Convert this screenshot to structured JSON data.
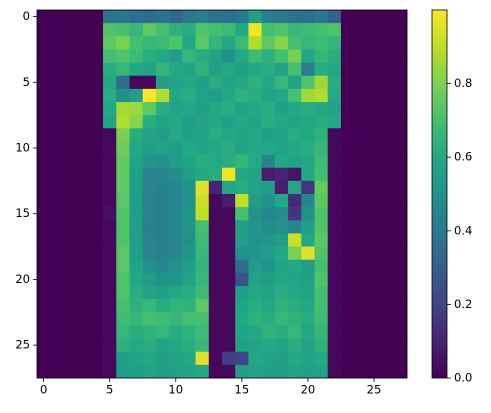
{
  "chart_data": {
    "type": "heatmap",
    "xlim": [
      -0.5,
      27.5
    ],
    "ylim": [
      27.5,
      -0.5
    ],
    "xticks": [
      0,
      5,
      10,
      15,
      20,
      25
    ],
    "yticks": [
      0,
      5,
      10,
      15,
      20,
      25
    ],
    "clim": [
      0,
      1
    ],
    "cticks": [
      {
        "value": 0,
        "label": "0.0"
      },
      {
        "value": 0.2,
        "label": "0.2"
      },
      {
        "value": 0.4,
        "label": "0.4"
      },
      {
        "value": 0.6,
        "label": "0.6"
      },
      {
        "value": 0.8,
        "label": "0.8"
      }
    ],
    "colormap": "viridis",
    "z": [
      [
        0,
        0,
        0,
        0,
        0,
        0.38,
        0.4,
        0.36,
        0.35,
        0.38,
        0.33,
        0.4,
        0.42,
        0.38,
        0.36,
        0.4,
        0.55,
        0.42,
        0.4,
        0.38,
        0.36,
        0.4,
        0.3,
        0,
        0,
        0,
        0,
        0
      ],
      [
        0,
        0,
        0,
        0,
        0,
        0.72,
        0.7,
        0.66,
        0.75,
        0.7,
        0.64,
        0.62,
        0.72,
        0.7,
        0.68,
        0.6,
        0.97,
        0.7,
        0.72,
        0.66,
        0.68,
        0.7,
        0.72,
        0,
        0,
        0,
        0,
        0
      ],
      [
        0,
        0,
        0,
        0,
        0,
        0.75,
        0.8,
        0.7,
        0.66,
        0.68,
        0.72,
        0.6,
        0.74,
        0.65,
        0.6,
        0.68,
        0.88,
        0.75,
        0.82,
        0.7,
        0.66,
        0.68,
        0.65,
        0,
        0,
        0,
        0,
        0
      ],
      [
        0,
        0,
        0,
        0,
        0,
        0.7,
        0.72,
        0.68,
        0.62,
        0.6,
        0.55,
        0.66,
        0.62,
        0.58,
        0.5,
        0.6,
        0.68,
        0.64,
        0.7,
        0.8,
        0.6,
        0.66,
        0.62,
        0,
        0,
        0,
        0,
        0
      ],
      [
        0,
        0,
        0,
        0,
        0,
        0.62,
        0.66,
        0.6,
        0.58,
        0.65,
        0.6,
        0.58,
        0.64,
        0.56,
        0.6,
        0.55,
        0.6,
        0.62,
        0.58,
        0.7,
        0.42,
        0.62,
        0.6,
        0,
        0,
        0,
        0,
        0
      ],
      [
        0,
        0,
        0,
        0,
        0,
        0.6,
        0.35,
        0.02,
        0.02,
        0.55,
        0.58,
        0.6,
        0.56,
        0.62,
        0.58,
        0.6,
        0.64,
        0.6,
        0.66,
        0.58,
        0.72,
        0.85,
        0.62,
        0,
        0,
        0,
        0,
        0
      ],
      [
        0,
        0,
        0,
        0,
        0,
        0.62,
        0.5,
        0.55,
        1.0,
        0.88,
        0.6,
        0.62,
        0.58,
        0.55,
        0.6,
        0.64,
        0.62,
        0.58,
        0.6,
        0.7,
        0.86,
        0.88,
        0.6,
        0,
        0,
        0,
        0,
        0
      ],
      [
        0,
        0,
        0,
        0,
        0,
        0.6,
        0.86,
        0.85,
        0.75,
        0.62,
        0.58,
        0.6,
        0.56,
        0.6,
        0.62,
        0.58,
        0.6,
        0.62,
        0.56,
        0.6,
        0.62,
        0.6,
        0.58,
        0,
        0,
        0,
        0,
        0
      ],
      [
        0,
        0,
        0,
        0,
        0,
        0.58,
        0.88,
        0.82,
        0.62,
        0.58,
        0.6,
        0.55,
        0.58,
        0.6,
        0.56,
        0.6,
        0.58,
        0.62,
        0.6,
        0.58,
        0.6,
        0.62,
        0.6,
        0,
        0,
        0,
        0,
        0
      ],
      [
        0,
        0,
        0,
        0,
        0,
        0.02,
        0.8,
        0.62,
        0.58,
        0.55,
        0.6,
        0.56,
        0.58,
        0.62,
        0.6,
        0.58,
        0.6,
        0.56,
        0.58,
        0.62,
        0.6,
        0.64,
        0.02,
        0,
        0,
        0,
        0,
        0
      ],
      [
        0,
        0,
        0,
        0,
        0,
        0.02,
        0.78,
        0.6,
        0.56,
        0.58,
        0.55,
        0.6,
        0.58,
        0.6,
        0.62,
        0.58,
        0.6,
        0.6,
        0.58,
        0.6,
        0.62,
        0.66,
        0.02,
        0,
        0,
        0,
        0,
        0
      ],
      [
        0,
        0,
        0,
        0,
        0,
        0.02,
        0.76,
        0.58,
        0.52,
        0.5,
        0.55,
        0.58,
        0.62,
        0.6,
        0.62,
        0.66,
        0.6,
        0.45,
        0.6,
        0.58,
        0.6,
        0.68,
        0.02,
        0,
        0,
        0,
        0,
        0
      ],
      [
        0,
        0,
        0,
        0,
        0,
        0.02,
        0.75,
        0.56,
        0.46,
        0.45,
        0.48,
        0.55,
        0.6,
        0.62,
        0.98,
        0.6,
        0.58,
        0.08,
        0.1,
        0.05,
        0.6,
        0.7,
        0.02,
        0,
        0,
        0,
        0,
        0
      ],
      [
        0,
        0,
        0,
        0,
        0,
        0.02,
        0.75,
        0.55,
        0.45,
        0.44,
        0.46,
        0.5,
        0.95,
        0.1,
        0.6,
        0.62,
        0.58,
        0.55,
        0.08,
        0.6,
        0.15,
        0.76,
        0.02,
        0,
        0,
        0,
        0,
        0
      ],
      [
        0,
        0,
        0,
        0,
        0,
        0.02,
        0.74,
        0.55,
        0.44,
        0.42,
        0.46,
        0.5,
        0.92,
        0.02,
        0.08,
        0.9,
        0.55,
        0.5,
        0.6,
        0.12,
        0.45,
        0.74,
        0.02,
        0,
        0,
        0,
        0,
        0
      ],
      [
        0,
        0,
        0,
        0,
        0,
        0.04,
        0.72,
        0.55,
        0.45,
        0.42,
        0.46,
        0.52,
        0.9,
        0.02,
        0.02,
        0.7,
        0.5,
        0.45,
        0.48,
        0.15,
        0.5,
        0.72,
        0.02,
        0,
        0,
        0,
        0,
        0
      ],
      [
        0,
        0,
        0,
        0,
        0,
        0.02,
        0.72,
        0.56,
        0.44,
        0.42,
        0.46,
        0.52,
        0.7,
        0.02,
        0.02,
        0.55,
        0.52,
        0.48,
        0.5,
        0.46,
        0.55,
        0.72,
        0.02,
        0,
        0,
        0,
        0,
        0
      ],
      [
        0,
        0,
        0,
        0,
        0,
        0.02,
        0.72,
        0.55,
        0.45,
        0.42,
        0.45,
        0.5,
        0.68,
        0.02,
        0.02,
        0.55,
        0.5,
        0.52,
        0.55,
        0.92,
        0.6,
        0.74,
        0.02,
        0,
        0,
        0,
        0,
        0
      ],
      [
        0,
        0,
        0,
        0,
        0,
        0.02,
        0.74,
        0.56,
        0.46,
        0.44,
        0.46,
        0.52,
        0.66,
        0.02,
        0.02,
        0.5,
        0.52,
        0.55,
        0.6,
        0.8,
        0.95,
        0.72,
        0.02,
        0,
        0,
        0,
        0,
        0
      ],
      [
        0,
        0,
        0,
        0,
        0,
        0.02,
        0.74,
        0.58,
        0.5,
        0.46,
        0.5,
        0.55,
        0.65,
        0.02,
        0.02,
        0.35,
        0.55,
        0.52,
        0.58,
        0.6,
        0.55,
        0.7,
        0.02,
        0,
        0,
        0,
        0,
        0
      ],
      [
        0,
        0,
        0,
        0,
        0,
        0.02,
        0.72,
        0.6,
        0.55,
        0.5,
        0.52,
        0.58,
        0.66,
        0.02,
        0.02,
        0.25,
        0.58,
        0.55,
        0.6,
        0.58,
        0.56,
        0.72,
        0.02,
        0,
        0,
        0,
        0,
        0
      ],
      [
        0,
        0,
        0,
        0,
        0,
        0.02,
        0.72,
        0.62,
        0.58,
        0.56,
        0.6,
        0.62,
        0.68,
        0.02,
        0.02,
        0.55,
        0.6,
        0.58,
        0.62,
        0.6,
        0.58,
        0.7,
        0.02,
        0,
        0,
        0,
        0,
        0
      ],
      [
        0,
        0,
        0,
        0,
        0,
        0.02,
        0.7,
        0.64,
        0.66,
        0.62,
        0.65,
        0.64,
        0.75,
        0.02,
        0.02,
        0.58,
        0.62,
        0.6,
        0.64,
        0.62,
        0.6,
        0.7,
        0.02,
        0,
        0,
        0,
        0,
        0
      ],
      [
        0,
        0,
        0,
        0,
        0,
        0.02,
        0.68,
        0.66,
        0.7,
        0.68,
        0.66,
        0.7,
        0.7,
        0.02,
        0.02,
        0.6,
        0.64,
        0.62,
        0.66,
        0.64,
        0.62,
        0.68,
        0.02,
        0,
        0,
        0,
        0,
        0
      ],
      [
        0,
        0,
        0,
        0,
        0,
        0.02,
        0.66,
        0.62,
        0.64,
        0.66,
        0.62,
        0.64,
        0.68,
        0.02,
        0.02,
        0.58,
        0.6,
        0.64,
        0.62,
        0.66,
        0.6,
        0.66,
        0.02,
        0,
        0,
        0,
        0,
        0
      ],
      [
        0,
        0,
        0,
        0,
        0,
        0.02,
        0.64,
        0.6,
        0.62,
        0.58,
        0.6,
        0.62,
        0.66,
        0.02,
        0.02,
        0.56,
        0.58,
        0.6,
        0.58,
        0.62,
        0.58,
        0.64,
        0.02,
        0,
        0,
        0,
        0,
        0
      ],
      [
        0,
        0,
        0,
        0,
        0,
        0.02,
        0.56,
        0.58,
        0.6,
        0.56,
        0.58,
        0.6,
        0.95,
        0.02,
        0.18,
        0.2,
        0.6,
        0.58,
        0.56,
        0.6,
        0.58,
        0.6,
        0.02,
        0,
        0,
        0,
        0,
        0
      ],
      [
        0,
        0,
        0,
        0,
        0,
        0.02,
        0.55,
        0.56,
        0.58,
        0.55,
        0.56,
        0.58,
        0.6,
        0.02,
        0.02,
        0.55,
        0.58,
        0.56,
        0.55,
        0.58,
        0.56,
        0.58,
        0.02,
        0,
        0,
        0,
        0,
        0
      ]
    ]
  }
}
